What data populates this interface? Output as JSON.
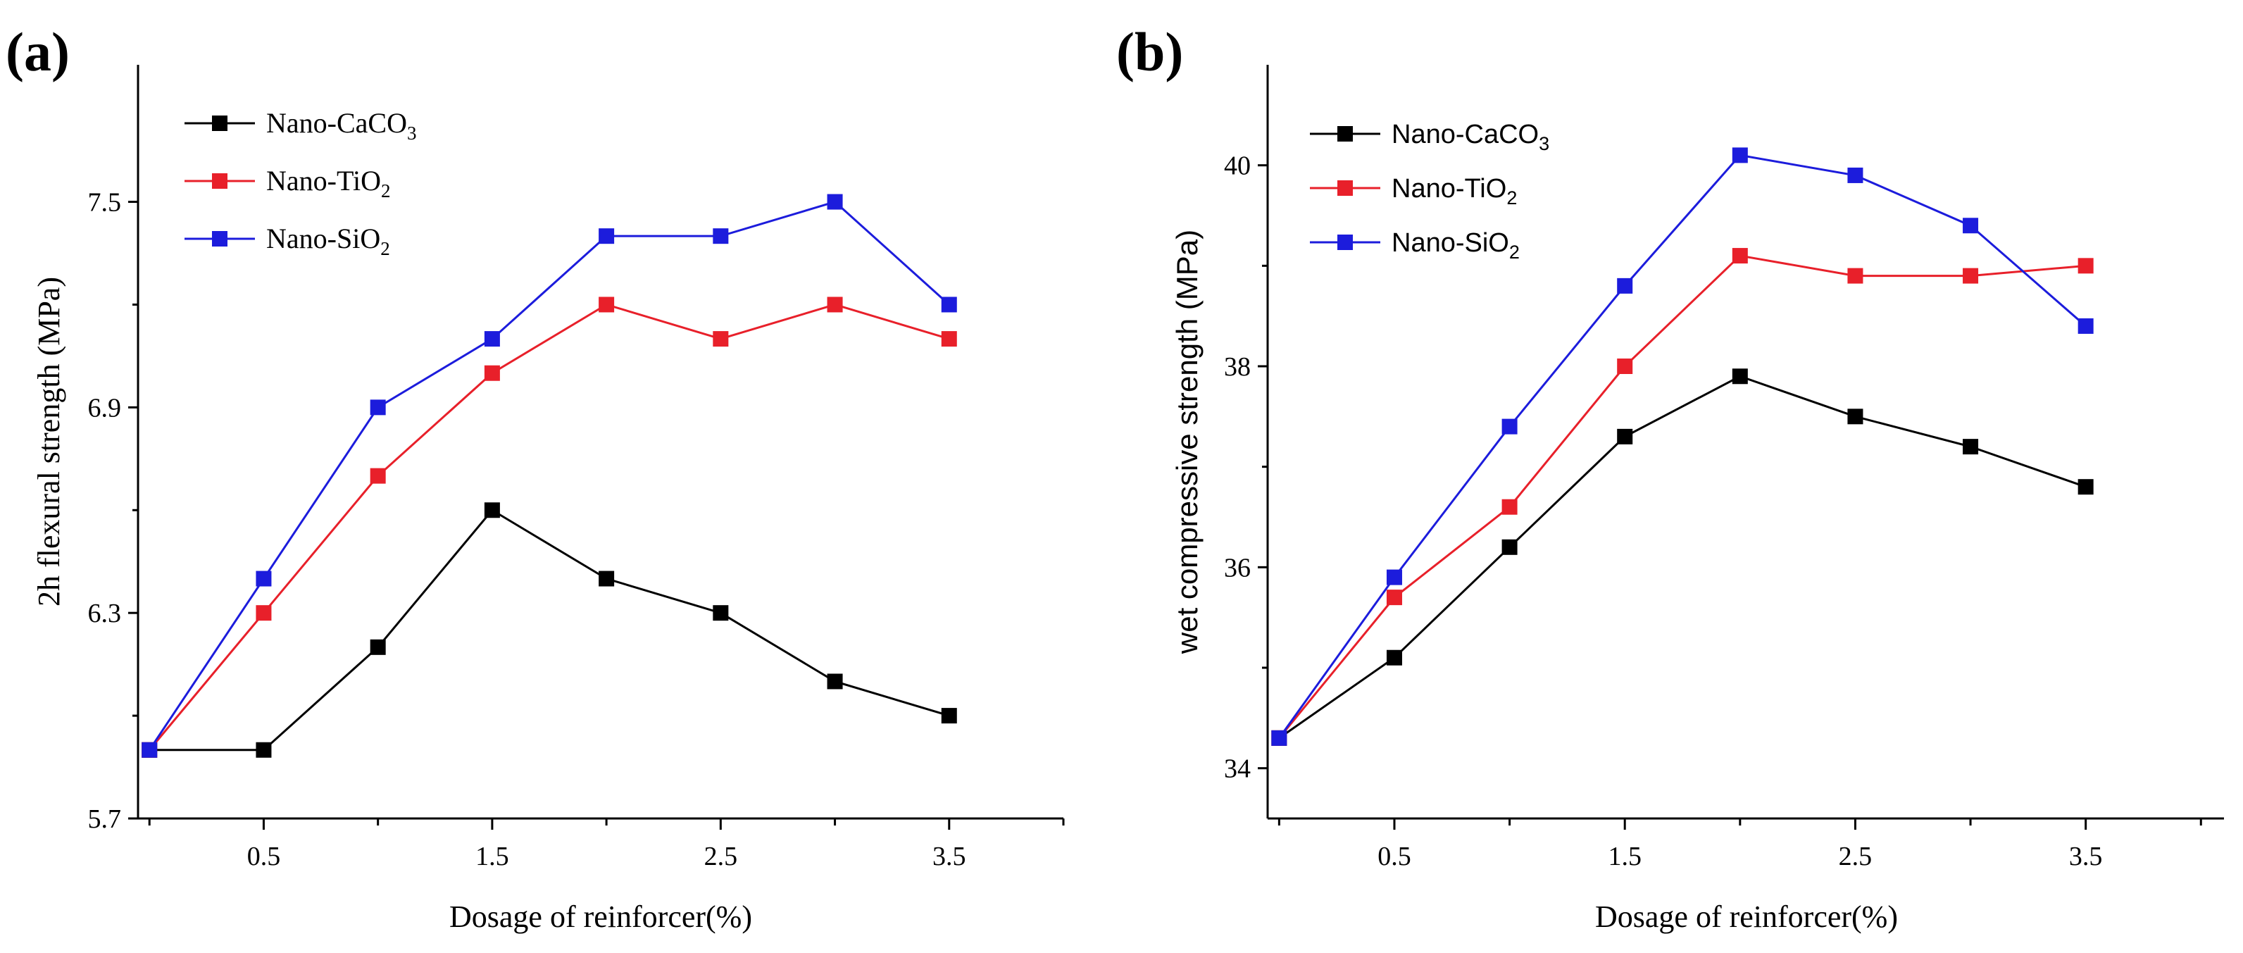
{
  "chart_data": [
    {
      "type": "line",
      "panel_label": "(a)",
      "xlabel": "Dosage of reinforcer(%)",
      "ylabel": "2h flexural strength (MPa)",
      "x": [
        0,
        0.5,
        1.0,
        1.5,
        2.0,
        2.5,
        3.0,
        3.5
      ],
      "x_ticks": [
        {
          "value": 0.5,
          "label": "0.5"
        },
        {
          "value": 1.5,
          "label": "1.5"
        },
        {
          "value": 2.5,
          "label": "2.5"
        },
        {
          "value": 3.5,
          "label": "3.5"
        }
      ],
      "y_ticks": [
        {
          "value": 5.7,
          "label": "5.7"
        },
        {
          "value": 6.3,
          "label": "6.3"
        },
        {
          "value": 6.9,
          "label": "6.9"
        },
        {
          "value": 7.5,
          "label": "7.5"
        }
      ],
      "xlim": [
        -0.05,
        4.0
      ],
      "ylim": [
        5.7,
        7.9
      ],
      "legend_position": "top-left",
      "series": [
        {
          "name": "Nano-CaCO",
          "name_sub": "3",
          "color": "#000000",
          "values": [
            5.9,
            5.9,
            6.2,
            6.6,
            6.4,
            6.3,
            6.1,
            6.0
          ]
        },
        {
          "name": "Nano-TiO",
          "name_sub": "2",
          "color": "#e8202a",
          "values": [
            5.9,
            6.3,
            6.7,
            7.0,
            7.2,
            7.1,
            7.2,
            7.1
          ]
        },
        {
          "name": "Nano-SiO",
          "name_sub": "2",
          "color": "#1c1cdc",
          "values": [
            5.9,
            6.4,
            6.9,
            7.1,
            7.4,
            7.4,
            7.5,
            7.2
          ]
        }
      ]
    },
    {
      "type": "line",
      "panel_label": "(b)",
      "xlabel": "Dosage of reinforcer(%)",
      "ylabel": "wet compressive strength (MPa)",
      "x": [
        0,
        0.5,
        1.0,
        1.5,
        2.0,
        2.5,
        3.0,
        3.5
      ],
      "x_ticks": [
        {
          "value": 0.5,
          "label": "0.5"
        },
        {
          "value": 1.5,
          "label": "1.5"
        },
        {
          "value": 2.5,
          "label": "2.5"
        },
        {
          "value": 3.5,
          "label": "3.5"
        }
      ],
      "y_ticks": [
        {
          "value": 34,
          "label": "34"
        },
        {
          "value": 36,
          "label": "36"
        },
        {
          "value": 38,
          "label": "38"
        },
        {
          "value": 40,
          "label": "40"
        }
      ],
      "xlim": [
        -0.05,
        4.1
      ],
      "ylim": [
        33.5,
        41.0
      ],
      "legend_position": "top-left",
      "series": [
        {
          "name": "Nano-CaCO",
          "name_sub": "3",
          "color": "#000000",
          "values": [
            34.3,
            35.1,
            36.2,
            37.3,
            37.9,
            37.5,
            37.2,
            36.8
          ]
        },
        {
          "name": "Nano-TiO",
          "name_sub": "2",
          "color": "#e8202a",
          "values": [
            34.3,
            35.7,
            36.6,
            38.0,
            39.1,
            38.9,
            38.9,
            39.0
          ]
        },
        {
          "name": "Nano-SiO",
          "name_sub": "2",
          "color": "#1c1cdc",
          "values": [
            34.3,
            35.9,
            37.4,
            38.8,
            40.1,
            39.9,
            39.4,
            38.4
          ]
        }
      ]
    }
  ]
}
